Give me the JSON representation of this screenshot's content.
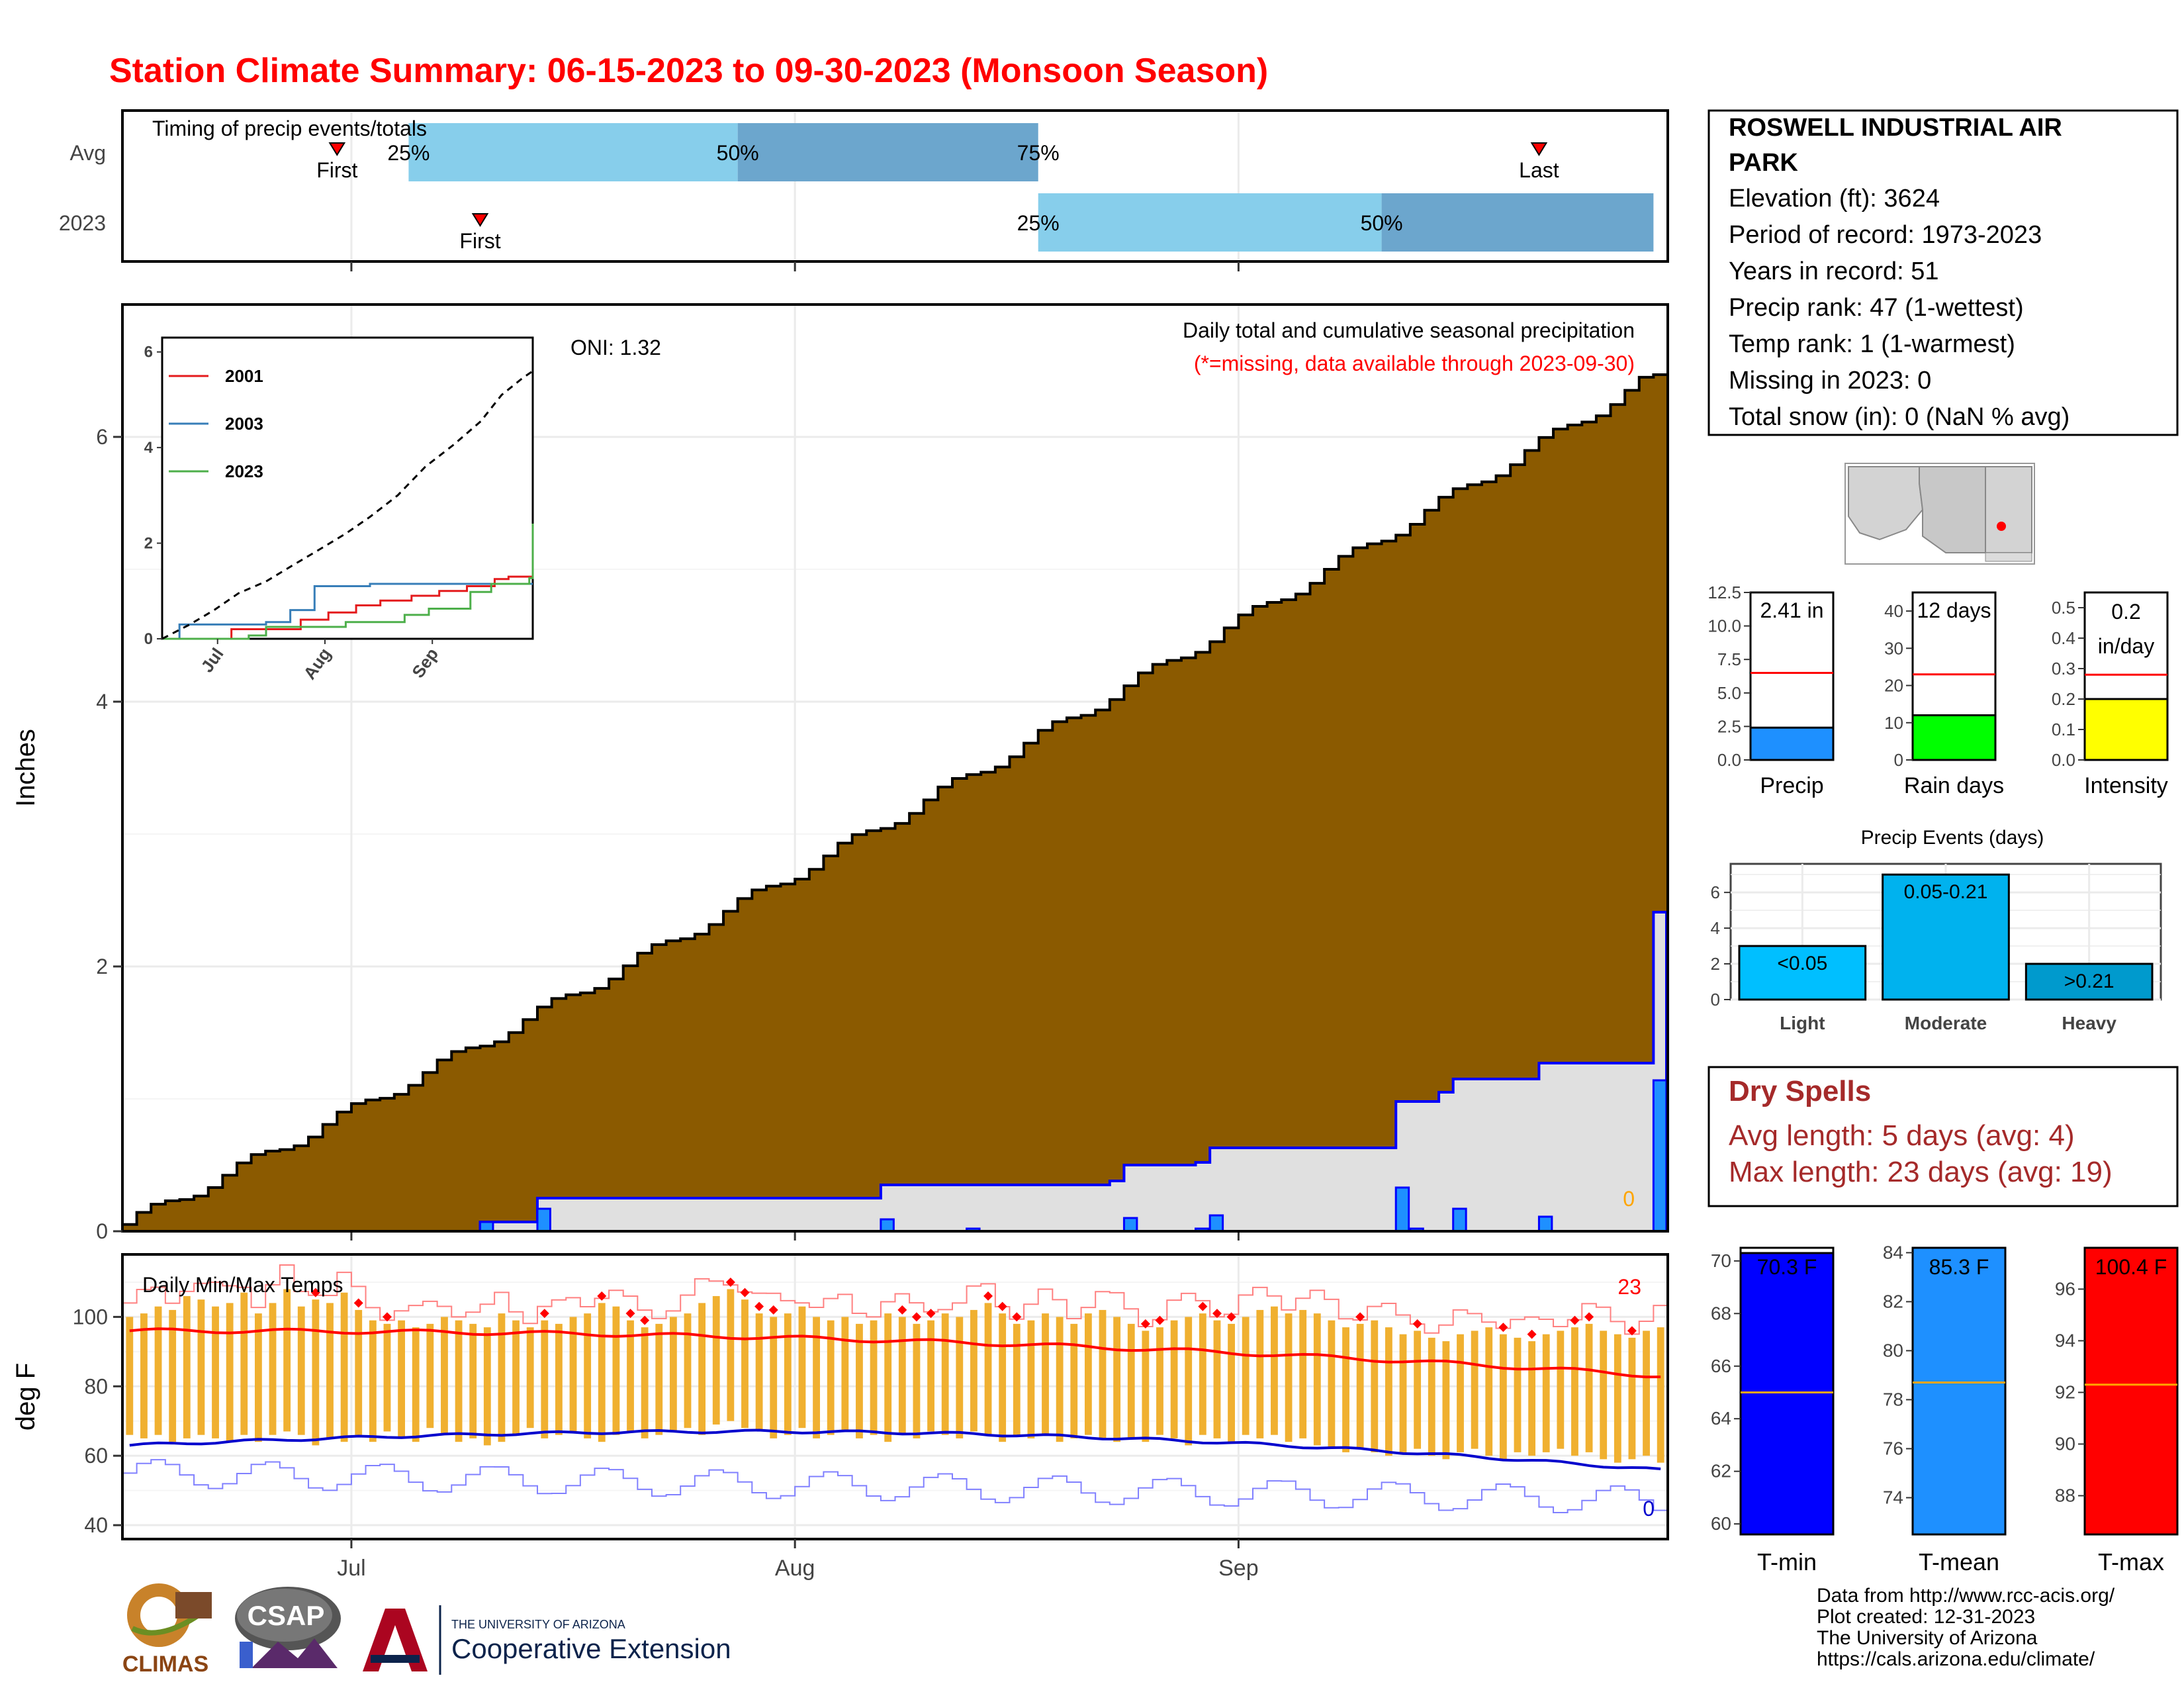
{
  "title": "Station Climate Summary: 06-15-2023 to 09-30-2023 (Monsoon Season)",
  "month_labels": [
    "Jul",
    "Aug",
    "Sep"
  ],
  "timing": {
    "label": "Timing of precip events/totals",
    "rows": [
      "Avg",
      "2023"
    ],
    "pct_labels": [
      "25%",
      "50%",
      "75%"
    ],
    "first_label": "First",
    "last_label": "Last",
    "avg": {
      "first": "2023-06-30",
      "last": "2023-09-22",
      "p25": "2023-07-05",
      "p50": "2023-07-28",
      "p75": "2023-08-18"
    },
    "y2023": {
      "first": "2023-07-10",
      "p25": "2023-08-18",
      "p50": "2023-09-11",
      "p75": "2023-09-30"
    }
  },
  "station": {
    "name": "ROSWELL INDUSTRIAL AIR PARK",
    "lines": [
      "Elevation (ft): 3624",
      "Period of record: 1973-2023",
      "Years in record: 51",
      "Precip rank: 47 (1-wettest)",
      "Temp rank: 1 (1-warmest)",
      "Missing in 2023: 0",
      "Total snow (in): 0 (NaN % avg)"
    ]
  },
  "precip_panel": {
    "title_line1": "Daily total and cumulative seasonal precipitation",
    "title_line2": "(*=missing, data available through 2023-09-30)",
    "oni": "ONI: 1.32",
    "ylabel": "Inches",
    "yticks": [
      "0",
      "2",
      "4",
      "6"
    ],
    "missing_count": "0"
  },
  "inset": {
    "legend": [
      "2001",
      "2003",
      "2023"
    ],
    "yticks": [
      "0",
      "2",
      "4",
      "6"
    ],
    "xticks": [
      "Jul",
      "Aug",
      "Sep"
    ]
  },
  "gauges": [
    {
      "name": "Precip",
      "value_text": "2.41 in",
      "value": 2.41,
      "avg": 6.5,
      "ymax": 12.5,
      "ticks": [
        "0.0",
        "2.5",
        "5.0",
        "7.5",
        "10.0",
        "12.5"
      ],
      "color": "#1e90ff"
    },
    {
      "name": "Rain days",
      "value_text": "12 days",
      "value": 12,
      "avg": 23,
      "ymax": 45,
      "ticks": [
        "0",
        "10",
        "20",
        "30",
        "40"
      ],
      "color": "#00ff00"
    },
    {
      "name": "Intensity",
      "value_text_line1": "0.2",
      "value_text_line2": "in/day",
      "value": 0.2,
      "avg": 0.28,
      "ymax": 0.55,
      "ticks": [
        "0.0",
        "0.1",
        "0.2",
        "0.3",
        "0.4",
        "0.5"
      ],
      "color": "#ffff00"
    }
  ],
  "precip_events": {
    "title": "Precip Events (days)",
    "yticks": [
      "0",
      "2",
      "4",
      "6"
    ],
    "bars": [
      {
        "category": "Light",
        "label": "<0.05",
        "value": 3,
        "color": "#00bfff"
      },
      {
        "category": "Moderate",
        "label": "0.05-0.21",
        "value": 7,
        "color": "#00b2ee"
      },
      {
        "category": "Heavy",
        "label": ">0.21",
        "value": 2,
        "color": "#009acd"
      }
    ]
  },
  "dry_spells": {
    "title": "Dry Spells",
    "line1": "Avg length: 5 days (avg: 4)",
    "line2": "Max length: 23 days (avg: 19)"
  },
  "temp_panel": {
    "label": "Daily Min/Max Temps",
    "ylabel": "deg F",
    "yticks": [
      "40",
      "60",
      "80",
      "100"
    ],
    "record_high_count": "23",
    "record_low_count": "0"
  },
  "temp_gauges": [
    {
      "name": "T-min",
      "value_text": "70.3 F",
      "value": 70.3,
      "avg": 65.0,
      "ymin": 59.6,
      "ymax": 70.5,
      "ticks": [
        "60",
        "62",
        "64",
        "66",
        "68",
        "70"
      ],
      "color": "#0000ff"
    },
    {
      "name": "T-mean",
      "value_text": "85.3 F",
      "value": 85.3,
      "avg": 78.7,
      "ymin": 72.5,
      "ymax": 84.2,
      "ticks": [
        "74",
        "76",
        "78",
        "80",
        "82",
        "84"
      ],
      "color": "#1e90ff"
    },
    {
      "name": "T-max",
      "value_text": "100.4 F",
      "value": 100.4,
      "avg": 92.3,
      "ymin": 86.5,
      "ymax": 97.6,
      "ticks": [
        "88",
        "90",
        "92",
        "94",
        "96"
      ],
      "color": "#ff0000"
    }
  ],
  "footer": {
    "lines": [
      "Data from http://www.rcc-acis.org/",
      "Plot created: 12-31-2023",
      "The University of Arizona",
      "https://cals.arizona.edu/climate/"
    ]
  },
  "logos": {
    "climas": "CLIMAS",
    "csap": "CSAP",
    "ua_small": "THE UNIVERSITY OF ARIZONA",
    "ua_big": "Cooperative Extension"
  },
  "chart_data": [
    {
      "type": "area",
      "name": "daily-and-cumulative-precip",
      "x_start": "2023-06-15",
      "x_end": "2023-09-30",
      "ylim": [
        0,
        7.0
      ],
      "cumulative_avg_end": 6.47,
      "cumulative_2023": [
        {
          "date": "2023-06-15",
          "value": 0.0
        },
        {
          "date": "2023-07-10",
          "value": 0.07
        },
        {
          "date": "2023-07-13",
          "value": 0.07
        },
        {
          "date": "2023-07-14",
          "value": 0.25
        },
        {
          "date": "2023-08-06",
          "value": 0.25
        },
        {
          "date": "2023-08-07",
          "value": 0.35
        },
        {
          "date": "2023-08-23",
          "value": 0.38
        },
        {
          "date": "2023-08-24",
          "value": 0.5
        },
        {
          "date": "2023-08-29",
          "value": 0.52
        },
        {
          "date": "2023-08-30",
          "value": 0.63
        },
        {
          "date": "2023-09-11",
          "value": 0.63
        },
        {
          "date": "2023-09-12",
          "value": 0.98
        },
        {
          "date": "2023-09-15",
          "value": 1.05
        },
        {
          "date": "2023-09-16",
          "value": 1.15
        },
        {
          "date": "2023-09-21",
          "value": 1.15
        },
        {
          "date": "2023-09-22",
          "value": 1.27
        },
        {
          "date": "2023-09-29",
          "value": 1.27
        },
        {
          "date": "2023-09-30",
          "value": 2.41
        }
      ],
      "daily_2023": [
        {
          "date": "2023-07-10",
          "value": 0.07
        },
        {
          "date": "2023-07-14",
          "value": 0.17
        },
        {
          "date": "2023-08-07",
          "value": 0.09
        },
        {
          "date": "2023-08-13",
          "value": 0.02
        },
        {
          "date": "2023-08-24",
          "value": 0.1
        },
        {
          "date": "2023-08-29",
          "value": 0.02
        },
        {
          "date": "2023-08-30",
          "value": 0.12
        },
        {
          "date": "2023-09-12",
          "value": 0.33
        },
        {
          "date": "2023-09-13",
          "value": 0.02
        },
        {
          "date": "2023-09-16",
          "value": 0.17
        },
        {
          "date": "2023-09-22",
          "value": 0.11
        },
        {
          "date": "2023-09-30",
          "value": 1.14
        }
      ]
    },
    {
      "type": "line",
      "name": "inset-cumulative-comparison",
      "ylim": [
        0,
        6.3
      ],
      "series": [
        {
          "name": "2001",
          "color": "#e41a1c",
          "points": [
            [
              0,
              0.0
            ],
            [
              12,
              0.0
            ],
            [
              20,
              0.2
            ],
            [
              35,
              0.2
            ],
            [
              40,
              0.4
            ],
            [
              48,
              0.55
            ],
            [
              56,
              0.7
            ],
            [
              63,
              0.8
            ],
            [
              72,
              0.9
            ],
            [
              80,
              1.0
            ],
            [
              88,
              1.1
            ],
            [
              96,
              1.25
            ],
            [
              100,
              1.3
            ],
            [
              107,
              1.3
            ]
          ]
        },
        {
          "name": "2003",
          "color": "#377eb8",
          "points": [
            [
              0,
              0.0
            ],
            [
              5,
              0.3
            ],
            [
              12,
              0.3
            ],
            [
              30,
              0.35
            ],
            [
              37,
              0.6
            ],
            [
              41,
              0.6
            ],
            [
              44,
              1.1
            ],
            [
              60,
              1.15
            ],
            [
              80,
              1.15
            ],
            [
              107,
              1.15
            ]
          ]
        },
        {
          "name": "2023",
          "color": "#4daf4a",
          "points": [
            [
              0,
              0.0
            ],
            [
              25,
              0.07
            ],
            [
              30,
              0.25
            ],
            [
              53,
              0.35
            ],
            [
              70,
              0.5
            ],
            [
              77,
              0.63
            ],
            [
              89,
              0.98
            ],
            [
              95,
              1.15
            ],
            [
              106,
              1.27
            ],
            [
              107,
              2.41
            ]
          ]
        },
        {
          "name": "average",
          "color": "#000000",
          "dashed": true,
          "points": [
            [
              0,
              0.0
            ],
            [
              8,
              0.3
            ],
            [
              15,
              0.6
            ],
            [
              22,
              0.95
            ],
            [
              30,
              1.2
            ],
            [
              38,
              1.55
            ],
            [
              45,
              1.85
            ],
            [
              53,
              2.2
            ],
            [
              60,
              2.55
            ],
            [
              68,
              3.0
            ],
            [
              76,
              3.6
            ],
            [
              84,
              4.05
            ],
            [
              92,
              4.55
            ],
            [
              98,
              5.1
            ],
            [
              104,
              5.45
            ],
            [
              107,
              5.6
            ]
          ]
        }
      ]
    },
    {
      "type": "bar",
      "name": "daily-min-max-temps",
      "ylim": [
        36,
        118
      ],
      "note": "daily temperature ranges (deg F) with smoothed average max and min and record lines",
      "days": [
        {
          "min": 66,
          "max": 100
        },
        {
          "min": 65,
          "max": 101
        },
        {
          "min": 66,
          "max": 103
        },
        {
          "min": 64,
          "max": 102
        },
        {
          "min": 65,
          "max": 106
        },
        {
          "min": 66,
          "max": 105
        },
        {
          "min": 65,
          "max": 103
        },
        {
          "min": 64,
          "max": 104
        },
        {
          "min": 66,
          "max": 107
        },
        {
          "min": 64,
          "max": 101
        },
        {
          "min": 66,
          "max": 104
        },
        {
          "min": 67,
          "max": 108
        },
        {
          "min": 66,
          "max": 103
        },
        {
          "min": 63,
          "max": 105
        },
        {
          "min": 65,
          "max": 104
        },
        {
          "min": 64,
          "max": 107
        },
        {
          "min": 66,
          "max": 102
        },
        {
          "min": 64,
          "max": 99
        },
        {
          "min": 67,
          "max": 98
        },
        {
          "min": 65,
          "max": 99
        },
        {
          "min": 64,
          "max": 97
        },
        {
          "min": 68,
          "max": 98
        },
        {
          "min": 66,
          "max": 100
        },
        {
          "min": 64,
          "max": 99
        },
        {
          "min": 65,
          "max": 98
        },
        {
          "min": 63,
          "max": 97
        },
        {
          "min": 64,
          "max": 101
        },
        {
          "min": 66,
          "max": 99
        },
        {
          "min": 68,
          "max": 97
        },
        {
          "min": 65,
          "max": 99
        },
        {
          "min": 66,
          "max": 98
        },
        {
          "min": 67,
          "max": 100
        },
        {
          "min": 65,
          "max": 101
        },
        {
          "min": 64,
          "max": 104
        },
        {
          "min": 66,
          "max": 103
        },
        {
          "min": 67,
          "max": 99
        },
        {
          "min": 65,
          "max": 97
        },
        {
          "min": 66,
          "max": 98
        },
        {
          "min": 67,
          "max": 100
        },
        {
          "min": 68,
          "max": 101
        },
        {
          "min": 66,
          "max": 104
        },
        {
          "min": 69,
          "max": 106
        },
        {
          "min": 70,
          "max": 108
        },
        {
          "min": 68,
          "max": 105
        },
        {
          "min": 67,
          "max": 101
        },
        {
          "min": 65,
          "max": 100
        },
        {
          "min": 66,
          "max": 101
        },
        {
          "min": 68,
          "max": 103
        },
        {
          "min": 65,
          "max": 100
        },
        {
          "min": 66,
          "max": 99
        },
        {
          "min": 67,
          "max": 100
        },
        {
          "min": 65,
          "max": 98
        },
        {
          "min": 66,
          "max": 99
        },
        {
          "min": 64,
          "max": 101
        },
        {
          "min": 66,
          "max": 100
        },
        {
          "min": 65,
          "max": 98
        },
        {
          "min": 67,
          "max": 99
        },
        {
          "min": 66,
          "max": 101
        },
        {
          "min": 65,
          "max": 100
        },
        {
          "min": 67,
          "max": 102
        },
        {
          "min": 66,
          "max": 104
        },
        {
          "min": 64,
          "max": 101
        },
        {
          "min": 66,
          "max": 98
        },
        {
          "min": 65,
          "max": 99
        },
        {
          "min": 66,
          "max": 101
        },
        {
          "min": 64,
          "max": 100
        },
        {
          "min": 65,
          "max": 98
        },
        {
          "min": 66,
          "max": 101
        },
        {
          "min": 65,
          "max": 102
        },
        {
          "min": 64,
          "max": 100
        },
        {
          "min": 65,
          "max": 98
        },
        {
          "min": 64,
          "max": 96
        },
        {
          "min": 66,
          "max": 97
        },
        {
          "min": 65,
          "max": 99
        },
        {
          "min": 63,
          "max": 100
        },
        {
          "min": 66,
          "max": 101
        },
        {
          "min": 65,
          "max": 99
        },
        {
          "min": 64,
          "max": 98
        },
        {
          "min": 66,
          "max": 100
        },
        {
          "min": 65,
          "max": 102
        },
        {
          "min": 66,
          "max": 103
        },
        {
          "min": 64,
          "max": 101
        },
        {
          "min": 65,
          "max": 102
        },
        {
          "min": 63,
          "max": 101
        },
        {
          "min": 62,
          "max": 99
        },
        {
          "min": 61,
          "max": 97
        },
        {
          "min": 62,
          "max": 98
        },
        {
          "min": 61,
          "max": 99
        },
        {
          "min": 60,
          "max": 97
        },
        {
          "min": 61,
          "max": 95
        },
        {
          "min": 62,
          "max": 96
        },
        {
          "min": 60,
          "max": 94
        },
        {
          "min": 59,
          "max": 93
        },
        {
          "min": 61,
          "max": 95
        },
        {
          "min": 62,
          "max": 96
        },
        {
          "min": 60,
          "max": 97
        },
        {
          "min": 59,
          "max": 95
        },
        {
          "min": 61,
          "max": 94
        },
        {
          "min": 60,
          "max": 93
        },
        {
          "min": 61,
          "max": 95
        },
        {
          "min": 62,
          "max": 96
        },
        {
          "min": 60,
          "max": 97
        },
        {
          "min": 61,
          "max": 98
        },
        {
          "min": 59,
          "max": 96
        },
        {
          "min": 58,
          "max": 95
        },
        {
          "min": 59,
          "max": 94
        },
        {
          "min": 60,
          "max": 96
        },
        {
          "min": 58,
          "max": 97
        }
      ],
      "avg_max_start": 96,
      "avg_max_end": 83,
      "avg_min_start": 63,
      "avg_min_end": 54
    }
  ]
}
